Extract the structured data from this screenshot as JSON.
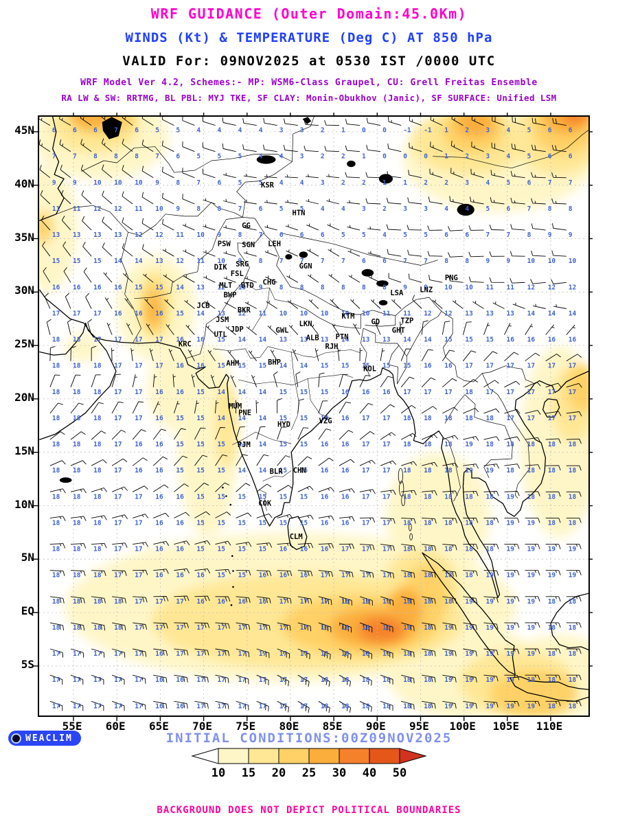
{
  "header": {
    "title": "WRF GUIDANCE (Outer Domain:45.0Km)",
    "subtitle": "WINDS (Kt) & TEMPERATURE (Deg C) AT 850 hPa",
    "valid_line": "VALID For: 09NOV2025 at 0530 IST /0000 UTC",
    "scheme_line1": "WRF Model Ver 4.2, Schemes:- MP: WSM6-Class Graupel, CU: Grell Freitas Ensemble",
    "scheme_line2": "RA LW & SW: RRTMG, BL PBL: MYJ TKE, SF CLAY: Monin-Obukhov (Janic), SF SURFACE: Unified LSM"
  },
  "axes": {
    "lat_ticks": [
      {
        "label": "45N",
        "lat": 45
      },
      {
        "label": "40N",
        "lat": 40
      },
      {
        "label": "35N",
        "lat": 35
      },
      {
        "label": "30N",
        "lat": 30
      },
      {
        "label": "25N",
        "lat": 25
      },
      {
        "label": "20N",
        "lat": 20
      },
      {
        "label": "15N",
        "lat": 15
      },
      {
        "label": "10N",
        "lat": 10
      },
      {
        "label": "5N",
        "lat": 5
      },
      {
        "label": "EQ",
        "lat": 0
      },
      {
        "label": "5S",
        "lat": -5
      }
    ],
    "lon_ticks": [
      {
        "label": "55E",
        "lon": 55
      },
      {
        "label": "60E",
        "lon": 60
      },
      {
        "label": "65E",
        "lon": 65
      },
      {
        "label": "70E",
        "lon": 70
      },
      {
        "label": "75E",
        "lon": 75
      },
      {
        "label": "80E",
        "lon": 80
      },
      {
        "label": "85E",
        "lon": 85
      },
      {
        "label": "90E",
        "lon": 90
      },
      {
        "label": "95E",
        "lon": 95
      },
      {
        "label": "100E",
        "lon": 100
      },
      {
        "label": "105E",
        "lon": 105
      },
      {
        "label": "110E",
        "lon": 110
      }
    ]
  },
  "stations": [
    {
      "id": "KSR",
      "lon": 76.6,
      "lat": 39.8
    },
    {
      "id": "HTN",
      "lon": 80.2,
      "lat": 37.2
    },
    {
      "id": "GG",
      "lon": 74.4,
      "lat": 36.0
    },
    {
      "id": "PSW",
      "lon": 71.6,
      "lat": 34.3
    },
    {
      "id": "SGN",
      "lon": 74.4,
      "lat": 34.2
    },
    {
      "id": "LEH",
      "lon": 77.4,
      "lat": 34.3
    },
    {
      "id": "DIK",
      "lon": 71.2,
      "lat": 32.1
    },
    {
      "id": "SRG",
      "lon": 73.7,
      "lat": 32.4
    },
    {
      "id": "FSL",
      "lon": 73.1,
      "lat": 31.5
    },
    {
      "id": "GGN",
      "lon": 81.0,
      "lat": 32.2
    },
    {
      "id": "PNG",
      "lon": 97.8,
      "lat": 31.1
    },
    {
      "id": "MLT",
      "lon": 71.8,
      "lat": 30.4
    },
    {
      "id": "BTD",
      "lon": 74.3,
      "lat": 30.4
    },
    {
      "id": "CHG",
      "lon": 76.8,
      "lat": 30.7
    },
    {
      "id": "BWP",
      "lon": 72.3,
      "lat": 29.5
    },
    {
      "id": "JCB",
      "lon": 69.2,
      "lat": 28.5
    },
    {
      "id": "BKR",
      "lon": 73.9,
      "lat": 28.1
    },
    {
      "id": "JSM",
      "lon": 71.4,
      "lat": 27.2
    },
    {
      "id": "JDP",
      "lon": 73.1,
      "lat": 26.3
    },
    {
      "id": "UTL",
      "lon": 71.2,
      "lat": 25.8
    },
    {
      "id": "GWL",
      "lon": 78.3,
      "lat": 26.2
    },
    {
      "id": "LKN",
      "lon": 81.0,
      "lat": 26.8
    },
    {
      "id": "KTM",
      "lon": 85.9,
      "lat": 27.5
    },
    {
      "id": "GD",
      "lon": 89.3,
      "lat": 27.0
    },
    {
      "id": "TZP",
      "lon": 92.7,
      "lat": 27.1
    },
    {
      "id": "GHT",
      "lon": 91.7,
      "lat": 26.2
    },
    {
      "id": "LSA",
      "lon": 91.5,
      "lat": 29.7
    },
    {
      "id": "LNZ",
      "lon": 94.9,
      "lat": 30.0
    },
    {
      "id": "KRC",
      "lon": 67.1,
      "lat": 24.9
    },
    {
      "id": "AHM",
      "lon": 72.6,
      "lat": 23.1
    },
    {
      "id": "BHP",
      "lon": 77.4,
      "lat": 23.2
    },
    {
      "id": "ALB",
      "lon": 81.8,
      "lat": 25.5
    },
    {
      "id": "PTN",
      "lon": 85.2,
      "lat": 25.6
    },
    {
      "id": "RJH",
      "lon": 84.0,
      "lat": 24.7
    },
    {
      "id": "KOL",
      "lon": 88.4,
      "lat": 22.6
    },
    {
      "id": "MUM",
      "lon": 72.9,
      "lat": 19.1
    },
    {
      "id": "PNE",
      "lon": 74.0,
      "lat": 18.5
    },
    {
      "id": "HYD",
      "lon": 78.5,
      "lat": 17.4
    },
    {
      "id": "VZG",
      "lon": 83.3,
      "lat": 17.7
    },
    {
      "id": "PJM",
      "lon": 73.9,
      "lat": 15.5
    },
    {
      "id": "BLR",
      "lon": 77.6,
      "lat": 13.0
    },
    {
      "id": "CHN",
      "lon": 80.3,
      "lat": 13.1
    },
    {
      "id": "COK",
      "lon": 76.3,
      "lat": 10.0
    },
    {
      "id": "CLM",
      "lon": 79.9,
      "lat": 6.9
    }
  ],
  "field": {
    "lons": [
      55,
      60,
      65,
      70,
      75,
      80,
      85,
      90,
      95,
      100,
      105,
      110
    ],
    "lats": [
      45,
      40,
      35,
      30,
      25,
      20,
      15,
      10,
      5,
      0,
      -5
    ],
    "temp_c": [
      [
        6,
        7,
        5,
        4,
        4,
        3,
        1,
        0,
        -1,
        2,
        4,
        6
      ],
      [
        10,
        11,
        9,
        7,
        5,
        4,
        3,
        1,
        2,
        3,
        5,
        7
      ],
      [
        14,
        13,
        12,
        10,
        8,
        6,
        6,
        5,
        6,
        7,
        8,
        9
      ],
      [
        17,
        16,
        15,
        13,
        10,
        8,
        8,
        9,
        10,
        11,
        12,
        13
      ],
      [
        18,
        17,
        17,
        16,
        15,
        14,
        15,
        14,
        15,
        16,
        17,
        17
      ],
      [
        18,
        17,
        16,
        14,
        14,
        15,
        16,
        17,
        18,
        18,
        17,
        17
      ],
      [
        18,
        17,
        15,
        15,
        14,
        15,
        16,
        17,
        18,
        19,
        18,
        18
      ],
      [
        18,
        17,
        16,
        15,
        15,
        15,
        16,
        17,
        18,
        18,
        19,
        18
      ],
      [
        18,
        17,
        16,
        15,
        15,
        16,
        17,
        17,
        18,
        18,
        19,
        19
      ],
      [
        18,
        18,
        17,
        17,
        17,
        17,
        18,
        18,
        18,
        19,
        19,
        18
      ],
      [
        17,
        17,
        16,
        17,
        17,
        17,
        18,
        18,
        18,
        19,
        19,
        18
      ]
    ],
    "wind_dir_from_deg": [
      [
        300,
        310,
        300,
        290,
        280,
        280,
        270,
        280,
        290,
        300,
        290,
        280
      ],
      [
        310,
        310,
        300,
        290,
        280,
        270,
        280,
        270,
        280,
        290,
        280,
        270
      ],
      [
        320,
        310,
        300,
        290,
        280,
        290,
        300,
        280,
        270,
        260,
        270,
        280
      ],
      [
        330,
        320,
        310,
        300,
        290,
        300,
        310,
        300,
        290,
        280,
        270,
        260
      ],
      [
        350,
        340,
        330,
        320,
        310,
        320,
        330,
        340,
        20,
        30,
        40,
        50
      ],
      [
        30,
        20,
        10,
        350,
        340,
        350,
        20,
        40,
        50,
        60,
        70,
        80
      ],
      [
        60,
        50,
        40,
        30,
        20,
        30,
        50,
        60,
        70,
        80,
        80,
        90
      ],
      [
        80,
        70,
        60,
        50,
        60,
        70,
        80,
        90,
        90,
        90,
        90,
        90
      ],
      [
        90,
        90,
        80,
        80,
        90,
        90,
        90,
        100,
        100,
        90,
        90,
        90
      ],
      [
        100,
        100,
        90,
        90,
        100,
        100,
        110,
        110,
        100,
        100,
        90,
        90
      ],
      [
        110,
        110,
        100,
        100,
        110,
        120,
        120,
        110,
        100,
        100,
        90,
        90
      ]
    ],
    "wind_speed_kt": [
      [
        15,
        15,
        10,
        10,
        10,
        10,
        10,
        10,
        15,
        15,
        20,
        20
      ],
      [
        10,
        10,
        10,
        10,
        5,
        5,
        5,
        10,
        10,
        15,
        15,
        15
      ],
      [
        10,
        10,
        10,
        5,
        5,
        5,
        5,
        5,
        10,
        10,
        10,
        10
      ],
      [
        10,
        5,
        5,
        5,
        5,
        5,
        5,
        5,
        10,
        10,
        10,
        10
      ],
      [
        10,
        5,
        5,
        5,
        5,
        5,
        5,
        5,
        10,
        10,
        10,
        10
      ],
      [
        10,
        10,
        5,
        5,
        5,
        10,
        10,
        10,
        10,
        10,
        10,
        10
      ],
      [
        10,
        10,
        10,
        10,
        10,
        10,
        10,
        15,
        15,
        15,
        10,
        10
      ],
      [
        15,
        15,
        10,
        10,
        10,
        15,
        15,
        15,
        15,
        15,
        10,
        10
      ],
      [
        15,
        15,
        15,
        15,
        15,
        20,
        20,
        20,
        20,
        15,
        15,
        15
      ],
      [
        20,
        20,
        20,
        25,
        25,
        30,
        50,
        30,
        25,
        20,
        15,
        15
      ],
      [
        15,
        15,
        20,
        20,
        20,
        25,
        25,
        20,
        20,
        15,
        15,
        15
      ]
    ]
  },
  "legend": {
    "tick_labels": [
      "10",
      "15",
      "20",
      "25",
      "30",
      "40",
      "50"
    ],
    "colors": [
      "#FFFFFF",
      "#FFF6C8",
      "#FFE795",
      "#FFD166",
      "#FBAE3C",
      "#F5812B",
      "#E55718",
      "#D23320"
    ]
  },
  "footer": {
    "logo_text": "WEACLIM",
    "initial_conditions": "INITIAL CONDITIONS:00Z09NOV2025",
    "disclaimer": "BACKGROUND DOES NOT DEPICT POLITICAL BOUNDARIES"
  },
  "colors": {
    "title": "#FF00CC",
    "subtitle": "#1F40FF",
    "valid": "#000000",
    "scheme": "#9900CC",
    "temp": "#4062CE",
    "init": "#8090F0",
    "disclaimer": "#FF0099",
    "badge_bg": "#2945F5"
  }
}
